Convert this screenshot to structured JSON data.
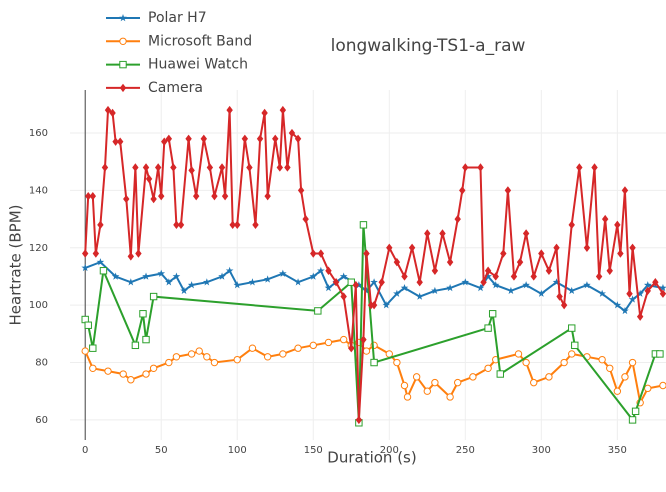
{
  "chart_data": {
    "type": "line",
    "title": "longwalking-TS1-a_raw",
    "x_label": "Duration (s)",
    "y_label": "Heartrate (BPM)",
    "xlim": [
      -10,
      382
    ],
    "ylim": [
      53,
      175
    ],
    "xticks": [
      0,
      50,
      100,
      150,
      200,
      250,
      300,
      350
    ],
    "yticks": [
      60,
      80,
      100,
      120,
      140,
      160
    ],
    "grid": true,
    "legend": "upper left",
    "series": [
      {
        "name": "Polar H7",
        "color": "#1f77b4",
        "marker": "star",
        "x": [
          0,
          10,
          20,
          30,
          40,
          50,
          55,
          60,
          65,
          70,
          80,
          90,
          95,
          100,
          110,
          120,
          130,
          140,
          150,
          155,
          160,
          165,
          170,
          180,
          185,
          190,
          198,
          205,
          210,
          220,
          230,
          240,
          250,
          260,
          265,
          270,
          280,
          290,
          300,
          310,
          320,
          330,
          340,
          350,
          355,
          360,
          365,
          370,
          380
        ],
        "values": [
          113,
          115,
          110,
          108,
          110,
          111,
          108,
          110,
          105,
          107,
          108,
          110,
          112,
          107,
          108,
          109,
          111,
          108,
          110,
          112,
          106,
          108,
          110,
          107,
          105,
          108,
          100,
          104,
          106,
          103,
          105,
          106,
          108,
          106,
          110,
          107,
          105,
          107,
          104,
          108,
          105,
          107,
          104,
          100,
          98,
          102,
          104,
          107,
          106
        ]
      },
      {
        "name": "Microsoft Band",
        "color": "#ff7f0e",
        "marker": "circle-open",
        "x": [
          0,
          5,
          15,
          25,
          30,
          40,
          45,
          55,
          60,
          70,
          75,
          80,
          85,
          100,
          110,
          120,
          130,
          140,
          150,
          160,
          170,
          175,
          180,
          185,
          190,
          200,
          205,
          210,
          212,
          218,
          225,
          230,
          240,
          245,
          255,
          265,
          270,
          285,
          290,
          295,
          305,
          315,
          320,
          330,
          340,
          345,
          350,
          355,
          360,
          365,
          370,
          380
        ],
        "values": [
          84,
          78,
          77,
          76,
          74,
          76,
          78,
          80,
          82,
          83,
          84,
          82,
          80,
          81,
          85,
          82,
          83,
          85,
          86,
          87,
          88,
          86,
          87,
          84,
          86,
          83,
          80,
          72,
          68,
          75,
          70,
          73,
          68,
          73,
          75,
          78,
          81,
          83,
          80,
          73,
          75,
          80,
          83,
          82,
          81,
          78,
          70,
          75,
          80,
          66,
          71,
          72
        ]
      },
      {
        "name": "Huawei Watch",
        "color": "#2ca02c",
        "marker": "square-open",
        "x": [
          0,
          2,
          5,
          12,
          33,
          38,
          40,
          45,
          153,
          175,
          180,
          183,
          190,
          265,
          268,
          273,
          320,
          322,
          360,
          362,
          375,
          378
        ],
        "values": [
          95,
          93,
          85,
          112,
          86,
          97,
          88,
          103,
          98,
          108,
          59,
          128,
          80,
          92,
          97,
          76,
          92,
          86,
          60,
          63,
          83,
          83
        ]
      },
      {
        "name": "Camera",
        "color": "#d62728",
        "marker": "diamond",
        "x": [
          0,
          2,
          5,
          7,
          10,
          13,
          15,
          18,
          20,
          23,
          27,
          30,
          33,
          35,
          40,
          42,
          45,
          48,
          50,
          52,
          55,
          58,
          60,
          63,
          68,
          70,
          73,
          78,
          82,
          85,
          90,
          92,
          95,
          97,
          100,
          105,
          108,
          112,
          115,
          118,
          120,
          125,
          128,
          130,
          133,
          136,
          140,
          142,
          145,
          150,
          155,
          160,
          165,
          170,
          175,
          178,
          180,
          183,
          185,
          188,
          190,
          195,
          200,
          205,
          210,
          215,
          220,
          225,
          230,
          235,
          240,
          245,
          248,
          250,
          260,
          262,
          265,
          270,
          275,
          278,
          282,
          286,
          290,
          295,
          300,
          305,
          310,
          312,
          315,
          320,
          325,
          330,
          335,
          338,
          342,
          345,
          350,
          352,
          355,
          358,
          360,
          365,
          370,
          375,
          380
        ],
        "values": [
          118,
          138,
          138,
          118,
          128,
          148,
          168,
          167,
          157,
          157,
          137,
          117,
          148,
          118,
          148,
          144,
          137,
          148,
          138,
          157,
          158,
          148,
          128,
          128,
          158,
          147,
          138,
          158,
          148,
          138,
          148,
          138,
          168,
          128,
          128,
          158,
          148,
          128,
          158,
          167,
          138,
          158,
          148,
          168,
          148,
          160,
          158,
          140,
          130,
          118,
          118,
          112,
          108,
          103,
          85,
          107,
          60,
          88,
          118,
          100,
          100,
          108,
          120,
          115,
          110,
          120,
          108,
          125,
          112,
          125,
          115,
          130,
          140,
          148,
          148,
          108,
          112,
          110,
          118,
          140,
          110,
          115,
          125,
          110,
          118,
          112,
          120,
          103,
          100,
          128,
          148,
          120,
          148,
          110,
          130,
          112,
          128,
          118,
          140,
          104,
          120,
          96,
          105,
          108,
          104
        ]
      }
    ]
  }
}
